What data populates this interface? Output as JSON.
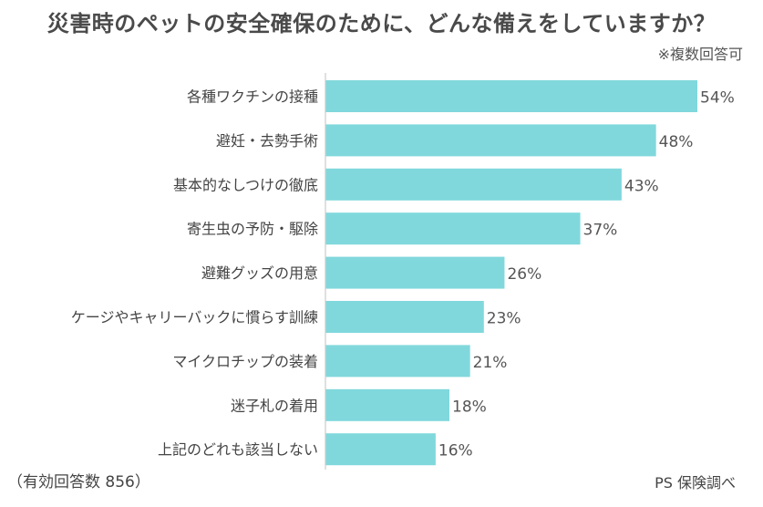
{
  "chart_data": {
    "type": "bar",
    "orientation": "horizontal",
    "title": "災害時のペットの安全確保のために、どんな備えをしていますか？",
    "subtitle": "※複数回答可",
    "categories": [
      "各種ワクチンの接種",
      "避妊・去勢手術",
      "基本的なしつけの徹底",
      "寄生虫の予防・駆除",
      "避難グッズの用意",
      "ケージやキャリーバックに慣らす訓練",
      "マイクロチップの装着",
      "迷子札の着用",
      "上記のどれも該当しない"
    ],
    "values": [
      54,
      48,
      43,
      37,
      26,
      23,
      21,
      18,
      16
    ],
    "value_suffix": "%",
    "xlim": [
      0,
      54
    ],
    "grid": false,
    "bar_color": "#80d8dc"
  },
  "footer": {
    "sample": "（有効回答数 856）",
    "source": "PS 保険調べ"
  }
}
